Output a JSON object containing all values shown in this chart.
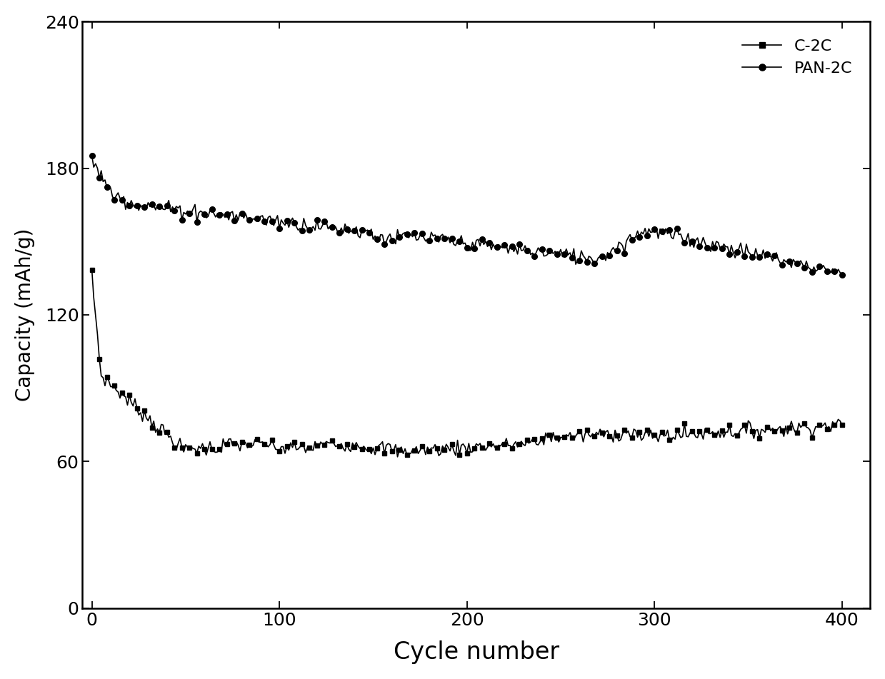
{
  "title": "",
  "xlabel": "Cycle number",
  "ylabel": "Capacity (mAh/g)",
  "xlim": [
    -5,
    415
  ],
  "ylim": [
    0,
    240
  ],
  "xticks": [
    0,
    100,
    200,
    300,
    400
  ],
  "yticks": [
    0,
    60,
    120,
    180,
    240
  ],
  "legend_labels": [
    "C-2C",
    "PAN-2C"
  ],
  "line_color": "#000000",
  "background_color": "#ffffff",
  "xlabel_fontsize": 24,
  "ylabel_fontsize": 20,
  "tick_fontsize": 18,
  "legend_fontsize": 16
}
